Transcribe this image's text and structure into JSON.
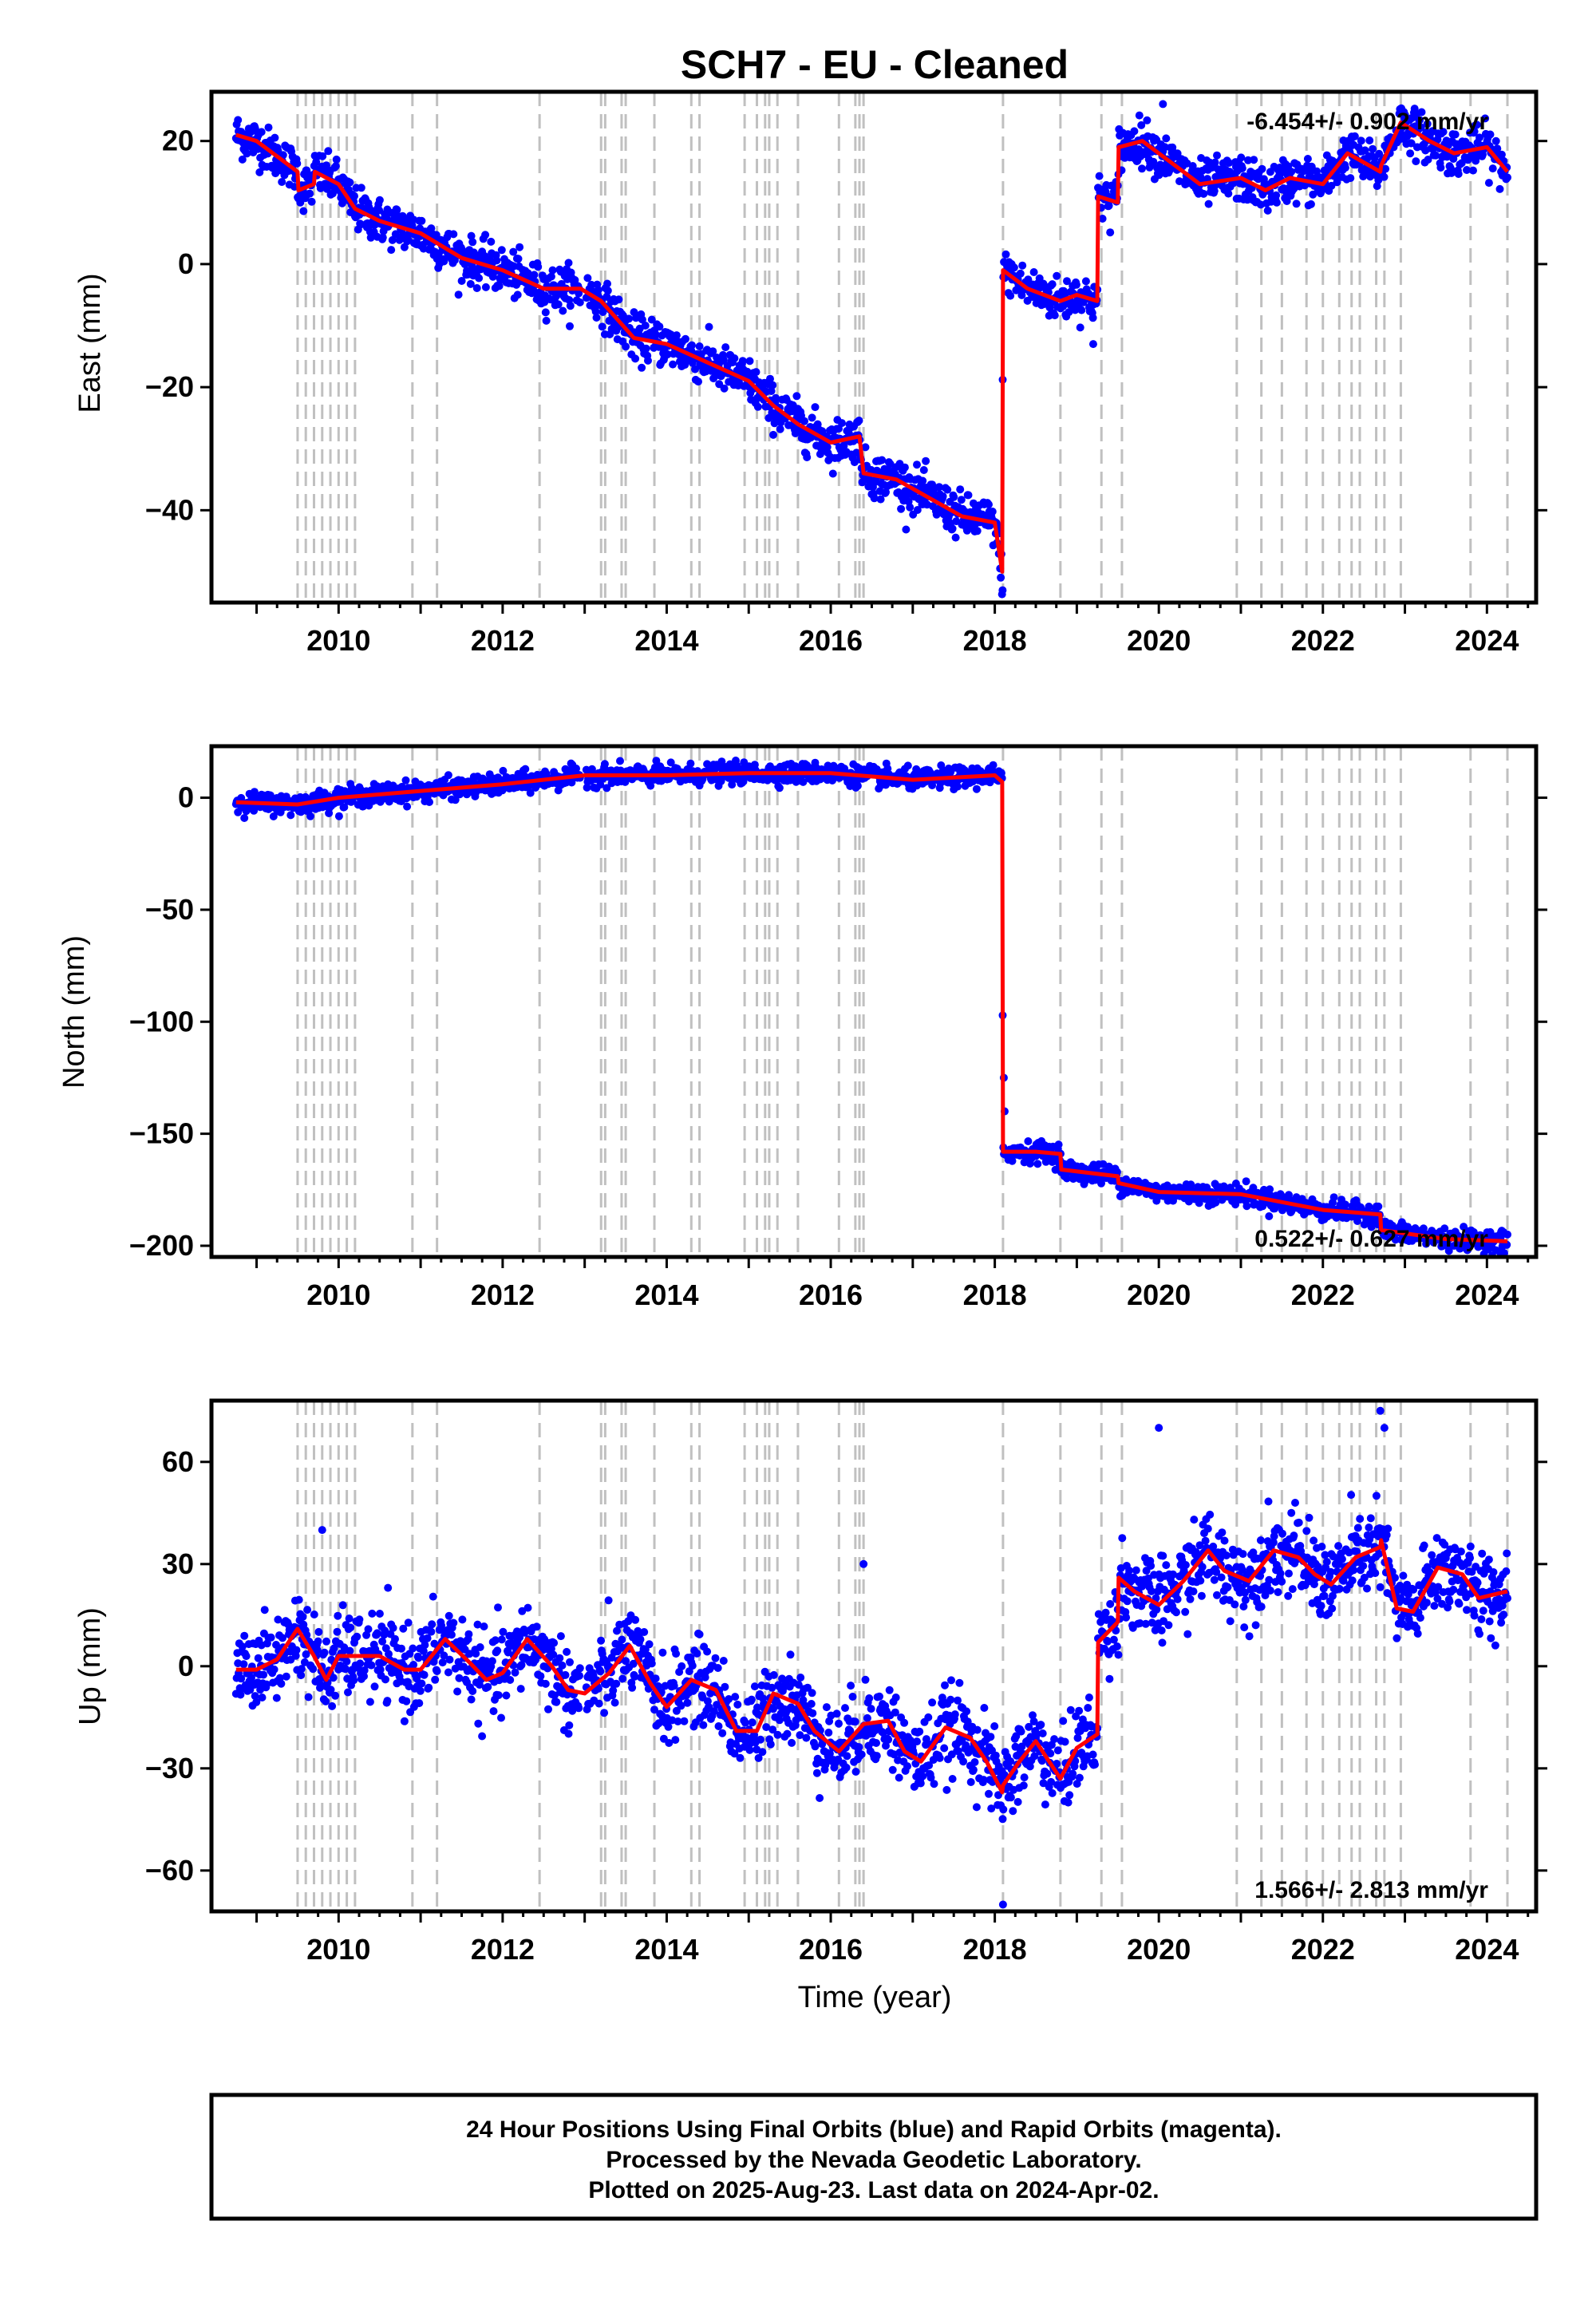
{
  "title": "SCH7  - EU - Cleaned",
  "xlabel": "Time (year)",
  "footer": {
    "line1": "24 Hour Positions Using Final Orbits (blue) and Rapid Orbits (magenta).",
    "line2": "Processed by the Nevada Geodetic Laboratory.",
    "line3": "Plotted on 2025-Aug-23. Last data on 2024-Apr-02."
  },
  "colors": {
    "data": "#0000ff",
    "model": "#ff0000",
    "steps": "#c0c0c0",
    "frame": "#000000"
  },
  "chart_data": [
    {
      "type": "scatter",
      "ylabel": "East (mm)",
      "rate_text": "-6.454+/- 0.902 mm/yr",
      "rate_position": "top-right",
      "xlim": [
        2008.45,
        2024.6
      ],
      "ylim": [
        -55,
        28
      ],
      "xticks": [
        2010,
        2012,
        2014,
        2016,
        2018,
        2020,
        2022,
        2024
      ],
      "yticks": [
        20,
        0,
        -20,
        -40
      ],
      "ytick_labels": [
        "20",
        "0",
        "−20",
        "−40"
      ],
      "data_series": "daily positions (blue dots)",
      "scatter_sd": 1.8,
      "model": {
        "x": [
          2008.75,
          2009.0,
          2009.3,
          2009.5,
          2009.51,
          2009.7,
          2009.71,
          2010.0,
          2010.2,
          2010.5,
          2011.0,
          2011.5,
          2012.0,
          2012.5,
          2012.95,
          2013.2,
          2013.6,
          2014.0,
          2014.5,
          2015.0,
          2015.3,
          2015.6,
          2016.0,
          2016.35,
          2016.4,
          2016.8,
          2017.2,
          2017.6,
          2018.0,
          2018.09,
          2018.1,
          2018.4,
          2018.8,
          2019.0,
          2019.25,
          2019.26,
          2019.5,
          2019.51,
          2019.8,
          2020.2,
          2020.5,
          2021.0,
          2021.3,
          2021.6,
          2022.0,
          2022.3,
          2022.7,
          2022.71,
          2022.95,
          2023.3,
          2023.6,
          2024.0,
          2024.25
        ],
        "y": [
          21,
          20,
          17,
          15,
          12,
          13,
          15,
          13,
          9,
          7,
          5,
          1,
          -1,
          -4,
          -4,
          -6,
          -12,
          -13,
          -16,
          -19,
          -23,
          -26,
          -29,
          -28,
          -34,
          -35,
          -38,
          -41,
          -42,
          -50,
          -1,
          -4,
          -6,
          -5,
          -6,
          11,
          10,
          19,
          20,
          16,
          13,
          14,
          12,
          14,
          13,
          18,
          15,
          16,
          23,
          20,
          18,
          19,
          15
        ]
      },
      "spikes": [
        [
          2018.095,
          -53
        ],
        [
          2019.2,
          -13
        ],
        [
          2020.05,
          26
        ]
      ]
    },
    {
      "type": "scatter",
      "ylabel": "North (mm)",
      "rate_text": "0.522+/- 0.627 mm/yr",
      "rate_position": "bottom-right",
      "xlim": [
        2008.45,
        2024.6
      ],
      "ylim": [
        -205,
        23
      ],
      "xticks": [
        2010,
        2012,
        2014,
        2016,
        2018,
        2020,
        2022,
        2024
      ],
      "yticks": [
        0,
        -50,
        -100,
        -150,
        -200
      ],
      "ytick_labels": [
        "0",
        "−50",
        "−100",
        "−150",
        "−200"
      ],
      "data_series": "daily positions (blue dots)",
      "scatter_sd": 2.2,
      "model": {
        "x": [
          2008.75,
          2009.5,
          2010.0,
          2011.0,
          2012.0,
          2013.0,
          2014.0,
          2015.0,
          2016.0,
          2017.0,
          2018.0,
          2018.09,
          2018.1,
          2018.5,
          2018.8,
          2018.81,
          2019.5,
          2019.51,
          2020.0,
          2021.0,
          2022.0,
          2022.7,
          2022.71,
          2023.5,
          2024.25
        ],
        "y": [
          -2,
          -3,
          0,
          3,
          6,
          10,
          10,
          11,
          11,
          8,
          10,
          7,
          -158,
          -158,
          -159,
          -166,
          -169,
          -172,
          -176,
          -177,
          -184,
          -186,
          -193,
          -197,
          -198
        ]
      },
      "spikes": [
        [
          2018.11,
          -125
        ],
        [
          2018.12,
          -140
        ]
      ]
    },
    {
      "type": "scatter",
      "ylabel": "Up (mm)",
      "rate_text": "1.566+/- 2.813 mm/yr",
      "rate_position": "bottom-right",
      "xlim": [
        2008.45,
        2024.6
      ],
      "ylim": [
        -72,
        78
      ],
      "xticks": [
        2010,
        2012,
        2014,
        2016,
        2018,
        2020,
        2022,
        2024
      ],
      "yticks": [
        60,
        30,
        0,
        -30,
        -60
      ],
      "ytick_labels": [
        "60",
        "30",
        "0",
        "−30",
        "−60"
      ],
      "data_series": "daily positions (blue dots)",
      "scatter_sd": 6,
      "model": {
        "x": [
          2008.75,
          2009.0,
          2009.25,
          2009.5,
          2009.7,
          2009.85,
          2010.0,
          2010.2,
          2010.5,
          2010.8,
          2011.0,
          2011.3,
          2011.6,
          2011.8,
          2012.0,
          2012.3,
          2012.6,
          2012.8,
          2013.0,
          2013.3,
          2013.55,
          2013.8,
          2014.0,
          2014.3,
          2014.6,
          2014.85,
          2015.1,
          2015.3,
          2015.6,
          2015.8,
          2016.1,
          2016.4,
          2016.7,
          2016.9,
          2017.1,
          2017.4,
          2017.7,
          2017.9,
          2018.09,
          2018.1,
          2018.3,
          2018.5,
          2018.8,
          2019.0,
          2019.25,
          2019.26,
          2019.5,
          2019.51,
          2019.7,
          2020.0,
          2020.3,
          2020.6,
          2020.8,
          2021.1,
          2021.4,
          2021.7,
          2021.9,
          2022.1,
          2022.4,
          2022.7,
          2022.71,
          2022.9,
          2023.1,
          2023.4,
          2023.7,
          2023.9,
          2024.25
        ],
        "y": [
          -1,
          -1,
          2,
          11,
          3,
          -4,
          3,
          3,
          3,
          -1,
          -1,
          8,
          1,
          -4,
          -2,
          8,
          0,
          -7,
          -8,
          -2,
          6,
          -5,
          -12,
          -4,
          -7,
          -19,
          -19,
          -8,
          -11,
          -19,
          -25,
          -17,
          -16,
          -25,
          -28,
          -18,
          -21,
          -28,
          -37,
          -35,
          -28,
          -22,
          -33,
          -24,
          -20,
          7,
          13,
          26,
          22,
          18,
          25,
          34,
          28,
          25,
          34,
          32,
          27,
          24,
          32,
          35,
          37,
          17,
          16,
          29,
          27,
          20,
          22
        ]
      },
      "spikes": [
        [
          2022.7,
          75
        ],
        [
          2022.75,
          70
        ],
        [
          2020.0,
          70
        ],
        [
          2016.4,
          30
        ],
        [
          2018.1,
          -70
        ],
        [
          2009.8,
          40
        ]
      ]
    }
  ],
  "step_lines": [
    2009.5,
    2009.6,
    2009.7,
    2009.8,
    2009.9,
    2010.0,
    2010.1,
    2010.2,
    2010.9,
    2011.2,
    2012.45,
    2013.2,
    2013.25,
    2013.45,
    2013.5,
    2013.85,
    2014.3,
    2014.4,
    2014.95,
    2015.1,
    2015.2,
    2015.25,
    2015.35,
    2015.6,
    2016.1,
    2016.3,
    2016.35,
    2016.4,
    2018.1,
    2018.8,
    2019.3,
    2019.55,
    2020.95,
    2021.25,
    2021.5,
    2021.8,
    2022.0,
    2022.2,
    2022.35,
    2022.45,
    2022.65,
    2022.75,
    2022.95,
    2023.8,
    2024.25
  ]
}
